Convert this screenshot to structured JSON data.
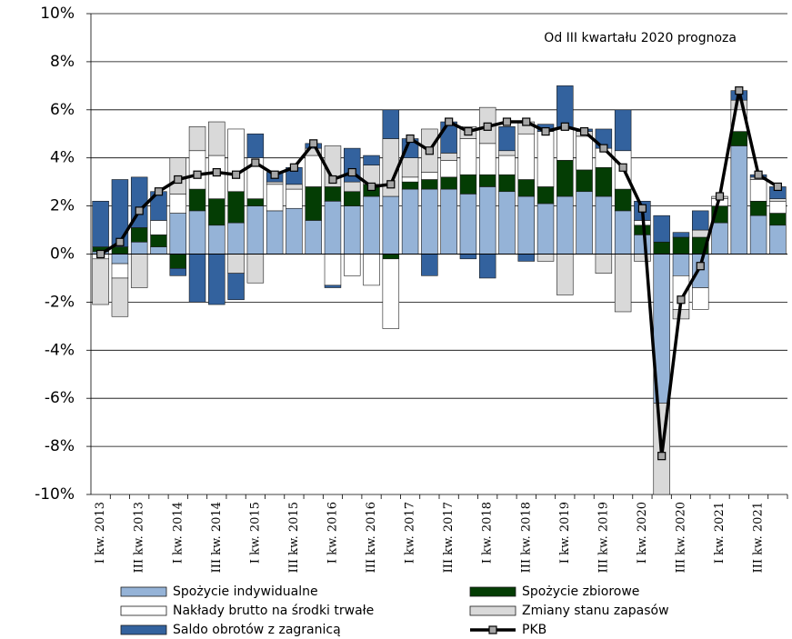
{
  "chart_data": {
    "type": "bar",
    "stacked": true,
    "annotation": "Od III kwartału 2020 prognoza",
    "categories": [
      "I kw. 2013",
      null,
      "III kw. 2013",
      null,
      "I kw. 2014",
      null,
      "III kw. 2014",
      null,
      "I kw. 2015",
      null,
      "III kw. 2015",
      null,
      "I kw. 2016",
      null,
      "III kw. 2016",
      null,
      "I kw. 2017",
      null,
      "III kw. 2017",
      null,
      "I kw. 2018",
      null,
      "III kw. 2018",
      null,
      "I kw. 2019",
      null,
      "III kw. 2019",
      null,
      "I kw. 2020",
      null,
      "III kw. 2020",
      null,
      "I kw. 2021",
      null,
      "III kw. 2021",
      null
    ],
    "series": [
      {
        "name": "Spożycie indywidualne",
        "color": "#95b3d7",
        "values": [
          0.1,
          -0.4,
          0.5,
          0.3,
          1.7,
          1.8,
          1.2,
          1.3,
          2.0,
          1.8,
          1.9,
          1.4,
          2.2,
          2.0,
          2.4,
          2.4,
          2.7,
          2.7,
          2.7,
          2.5,
          2.8,
          2.6,
          2.4,
          2.1,
          2.4,
          2.6,
          2.4,
          1.8,
          0.8,
          -6.2,
          -0.9,
          -1.4,
          1.3,
          4.5,
          1.6,
          1.2
        ]
      },
      {
        "name": "Spożycie zbiorowe",
        "color": "#043d04",
        "values": [
          0.2,
          0.3,
          0.6,
          0.5,
          -0.6,
          0.9,
          1.1,
          1.3,
          0.3,
          0.0,
          0.0,
          1.4,
          0.6,
          0.6,
          0.5,
          -0.2,
          0.3,
          0.4,
          0.5,
          0.8,
          0.5,
          0.7,
          0.7,
          0.7,
          1.5,
          0.9,
          1.2,
          0.9,
          0.4,
          0.5,
          0.7,
          0.7,
          0.7,
          0.6,
          0.6,
          0.5
        ]
      },
      {
        "name": "Nakłady brutto na środki trwałe",
        "color": "#ffffff",
        "values": [
          -0.2,
          -0.6,
          0.0,
          0.6,
          0.8,
          1.6,
          1.8,
          2.6,
          1.7,
          1.1,
          0.8,
          1.3,
          -1.3,
          -0.9,
          -1.3,
          -2.9,
          0.2,
          0.3,
          0.7,
          1.5,
          1.3,
          0.8,
          1.9,
          2.3,
          1.3,
          1.4,
          0.8,
          1.6,
          0.2,
          0.0,
          -1.4,
          -0.9,
          0.3,
          0.9,
          0.9,
          0.5
        ]
      },
      {
        "name": "Zmiany stanu zapasów",
        "color": "#d9d9d9",
        "values": [
          -1.9,
          -1.6,
          -1.4,
          0.0,
          1.5,
          1.0,
          1.4,
          -0.8,
          -1.2,
          0.1,
          0.2,
          0.3,
          1.7,
          0.4,
          0.8,
          2.4,
          0.8,
          1.8,
          0.3,
          0.5,
          1.5,
          0.2,
          0.5,
          -0.3,
          -1.7,
          0.2,
          -0.8,
          -2.4,
          -0.3,
          -3.8,
          -0.4,
          0.3,
          0.1,
          0.4,
          0.1,
          0.1
        ]
      },
      {
        "name": "Saldo obrotów  z zagranicą",
        "color": "#33629e",
        "values": [
          1.9,
          2.8,
          2.1,
          1.2,
          -0.3,
          -2.0,
          -2.1,
          -1.1,
          1.0,
          0.4,
          0.7,
          0.2,
          -0.1,
          1.4,
          0.4,
          1.2,
          0.8,
          -0.9,
          1.3,
          -0.2,
          -1.0,
          1.0,
          -0.3,
          0.3,
          1.8,
          0.1,
          0.8,
          1.7,
          0.8,
          1.1,
          0.2,
          0.8,
          0.0,
          0.4,
          0.1,
          0.5
        ]
      },
      {
        "name": "PKB",
        "type": "line",
        "color": "#000000",
        "marker_color": "#a6a6a6",
        "values": [
          0.0,
          0.5,
          1.8,
          2.6,
          3.1,
          3.3,
          3.4,
          3.3,
          3.8,
          3.3,
          3.6,
          4.6,
          3.1,
          3.4,
          2.8,
          2.9,
          4.8,
          4.3,
          5.5,
          5.1,
          5.3,
          5.5,
          5.5,
          5.1,
          5.3,
          5.1,
          4.4,
          3.6,
          1.9,
          -8.4,
          -1.9,
          -0.5,
          2.4,
          6.8,
          3.3,
          2.8
        ]
      }
    ],
    "ylim": [
      -10,
      10
    ],
    "yticks": [
      {
        "value": -10,
        "label": "-10%"
      },
      {
        "value": -8,
        "label": "-8%"
      },
      {
        "value": -6,
        "label": "-6%"
      },
      {
        "value": -4,
        "label": "-4%"
      },
      {
        "value": -2,
        "label": "-2%"
      },
      {
        "value": 0,
        "label": "0%"
      },
      {
        "value": 2,
        "label": "2%"
      },
      {
        "value": 4,
        "label": "4%"
      },
      {
        "value": 6,
        "label": "6%"
      },
      {
        "value": 8,
        "label": "8%"
      },
      {
        "value": 10,
        "label": "10%"
      }
    ],
    "grid": true,
    "legend": "bottom"
  }
}
